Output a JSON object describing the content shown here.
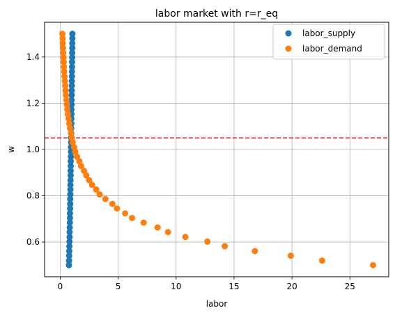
{
  "chart_data": {
    "type": "scatter",
    "title": "labor market with r=r_eq",
    "xlabel": "labor",
    "ylabel": "w",
    "xlim": [
      -1.35,
      28.35
    ],
    "ylim": [
      0.45,
      1.55
    ],
    "xticks": [
      0,
      5,
      10,
      15,
      20,
      25
    ],
    "yticks": [
      0.6,
      0.8,
      1.0,
      1.2,
      1.4
    ],
    "ytick_labels": [
      "0.6",
      "0.8",
      "1.0",
      "1.2",
      "1.4"
    ],
    "grid": true,
    "legend_position": "top-right",
    "hline": {
      "y": 1.05,
      "color": "#ff0000",
      "style": "dashed"
    },
    "series": [
      {
        "name": "labor_supply",
        "color": "#1f77b4",
        "x": [
          0.75,
          0.76,
          0.77,
          0.78,
          0.79,
          0.8,
          0.81,
          0.81,
          0.82,
          0.83,
          0.84,
          0.84,
          0.85,
          0.86,
          0.86,
          0.87,
          0.88,
          0.88,
          0.89,
          0.9,
          0.9,
          0.91,
          0.91,
          0.92,
          0.93,
          0.93,
          0.94,
          0.94,
          0.95,
          0.95,
          0.96,
          0.96,
          0.97,
          0.97,
          0.98,
          0.98,
          0.99,
          0.99,
          1.0,
          1.0,
          1.01,
          1.01,
          1.02,
          1.02,
          1.03,
          1.03,
          1.04,
          1.04,
          1.05,
          1.05
        ],
        "y": [
          0.5,
          0.52,
          0.541,
          0.561,
          0.582,
          0.602,
          0.622,
          0.643,
          0.663,
          0.684,
          0.704,
          0.724,
          0.745,
          0.765,
          0.786,
          0.806,
          0.827,
          0.847,
          0.867,
          0.888,
          0.908,
          0.929,
          0.949,
          0.969,
          0.99,
          1.01,
          1.031,
          1.051,
          1.071,
          1.092,
          1.112,
          1.133,
          1.153,
          1.173,
          1.194,
          1.214,
          1.235,
          1.255,
          1.276,
          1.296,
          1.316,
          1.337,
          1.357,
          1.378,
          1.398,
          1.418,
          1.439,
          1.459,
          1.48,
          1.5
        ]
      },
      {
        "name": "labor_demand",
        "color": "#ff7f0e",
        "x": [
          27.0,
          22.6,
          19.9,
          16.8,
          14.2,
          12.7,
          10.8,
          9.3,
          8.4,
          7.2,
          6.2,
          5.6,
          4.9,
          4.5,
          3.9,
          3.4,
          3.1,
          2.75,
          2.5,
          2.25,
          2.05,
          1.8,
          1.65,
          1.45,
          1.3,
          1.2,
          1.08,
          1.0,
          0.92,
          0.85,
          0.78,
          0.72,
          0.66,
          0.61,
          0.57,
          0.53,
          0.49,
          0.46,
          0.43,
          0.4,
          0.37,
          0.34,
          0.32,
          0.3,
          0.28,
          0.26,
          0.24,
          0.22,
          0.21,
          0.19
        ],
        "y": [
          0.5,
          0.52,
          0.541,
          0.561,
          0.582,
          0.602,
          0.622,
          0.643,
          0.663,
          0.684,
          0.704,
          0.724,
          0.745,
          0.765,
          0.786,
          0.806,
          0.827,
          0.847,
          0.867,
          0.888,
          0.908,
          0.929,
          0.949,
          0.969,
          0.99,
          1.01,
          1.031,
          1.051,
          1.071,
          1.092,
          1.112,
          1.133,
          1.153,
          1.173,
          1.194,
          1.214,
          1.235,
          1.255,
          1.276,
          1.296,
          1.316,
          1.337,
          1.357,
          1.378,
          1.398,
          1.418,
          1.439,
          1.459,
          1.48,
          1.5
        ]
      }
    ]
  }
}
